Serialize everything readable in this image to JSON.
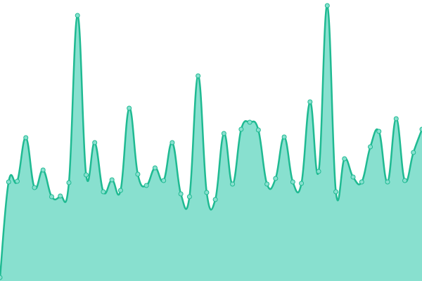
{
  "chart_data": {
    "type": "area",
    "categories": [
      null,
      null,
      null,
      null,
      null,
      null,
      null,
      null,
      null,
      null,
      null,
      null,
      null,
      null,
      null,
      null,
      null,
      null,
      null,
      null,
      null,
      null,
      null,
      null,
      null,
      null,
      null,
      null,
      null,
      null,
      null,
      null,
      null,
      null,
      null,
      null,
      null,
      null,
      null,
      null,
      null,
      null,
      null,
      null,
      null,
      null,
      null,
      null,
      null,
      null
    ],
    "values": [
      5,
      141,
      142,
      204,
      133,
      158,
      120,
      121,
      140,
      378,
      151,
      197,
      127,
      144,
      129,
      246,
      152,
      136,
      161,
      143,
      197,
      124,
      120,
      292,
      126,
      116,
      210,
      138,
      216,
      226,
      215,
      138,
      146,
      205,
      141,
      139,
      255,
      156,
      392,
      127,
      174,
      148,
      141,
      191,
      213,
      141,
      231,
      143,
      183,
      216
    ],
    "color": "#1fba92",
    "fill": "#88e0cf",
    "ylim": [
      0,
      400
    ]
  }
}
